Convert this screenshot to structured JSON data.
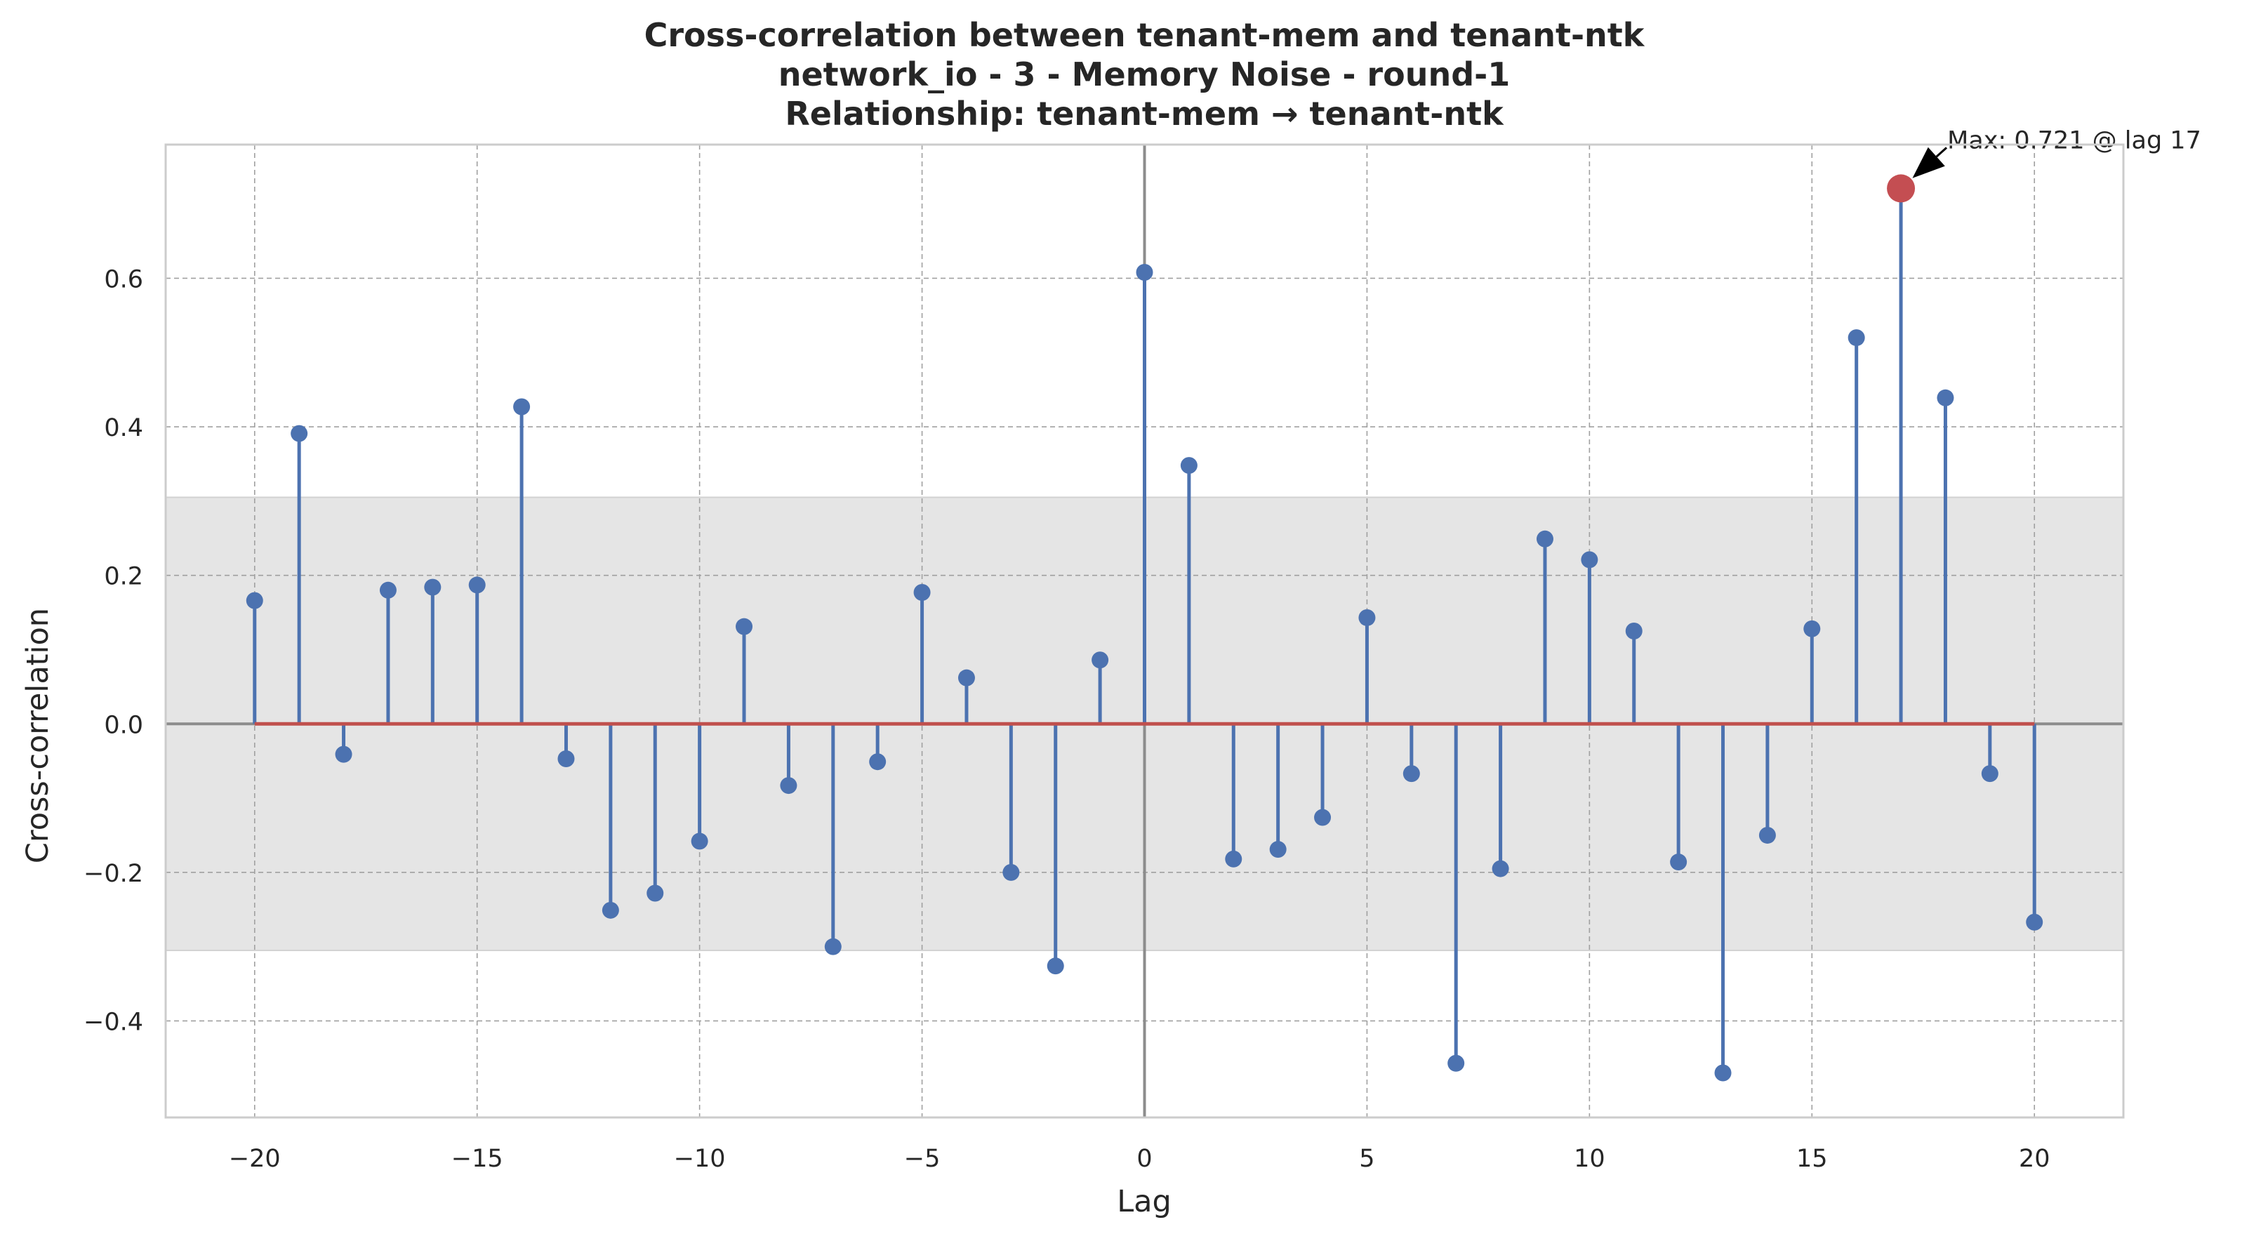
{
  "chart_data": {
    "type": "stem",
    "title_lines": [
      "Cross-correlation between tenant-mem and tenant-ntk",
      "network_io - 3 - Memory Noise - round-1",
      "Relationship: tenant-mem → tenant-ntk"
    ],
    "xlabel": "Lag",
    "ylabel": "Cross-correlation",
    "xlim": [
      -22,
      22
    ],
    "ylim": [
      -0.53,
      0.78
    ],
    "x_ticks": [
      -20,
      -15,
      -10,
      -5,
      0,
      5,
      10,
      15,
      20
    ],
    "x_tick_labels": [
      "−20",
      "−15",
      "−10",
      "−5",
      "0",
      "5",
      "10",
      "15",
      "20"
    ],
    "y_ticks": [
      -0.4,
      -0.2,
      0.0,
      0.2,
      0.4,
      0.6
    ],
    "y_tick_labels": [
      "−0.4",
      "−0.2",
      "0.0",
      "0.2",
      "0.4",
      "0.6"
    ],
    "grid": true,
    "confidence_band": [
      -0.305,
      0.305
    ],
    "x": [
      -20,
      -19,
      -18,
      -17,
      -16,
      -15,
      -14,
      -13,
      -12,
      -11,
      -10,
      -9,
      -8,
      -7,
      -6,
      -5,
      -4,
      -3,
      -2,
      -1,
      0,
      1,
      2,
      3,
      4,
      5,
      6,
      7,
      8,
      9,
      10,
      11,
      12,
      13,
      14,
      15,
      16,
      17,
      18,
      19,
      20
    ],
    "values": [
      0.166,
      0.391,
      -0.041,
      0.18,
      0.184,
      0.187,
      0.427,
      -0.047,
      -0.251,
      -0.228,
      -0.158,
      0.131,
      -0.083,
      -0.3,
      -0.051,
      0.177,
      0.062,
      -0.2,
      -0.326,
      0.086,
      0.608,
      0.348,
      -0.182,
      -0.169,
      -0.126,
      0.143,
      -0.067,
      -0.457,
      -0.195,
      0.249,
      0.221,
      0.125,
      -0.186,
      -0.47,
      -0.15,
      0.128,
      0.52,
      0.721,
      0.439,
      -0.067,
      -0.267
    ],
    "max_point": {
      "lag": 17,
      "value": 0.721
    },
    "annotation": "Max: 0.721 @ lag 17",
    "colors": {
      "stem": "#4c72b0",
      "baseline": "#c0504d",
      "max_marker": "#c44e52",
      "band": "#e5e5e5",
      "zero_line": "#8c8c8c",
      "grid": "#a0a0a0",
      "frame": "#cccccc"
    }
  }
}
